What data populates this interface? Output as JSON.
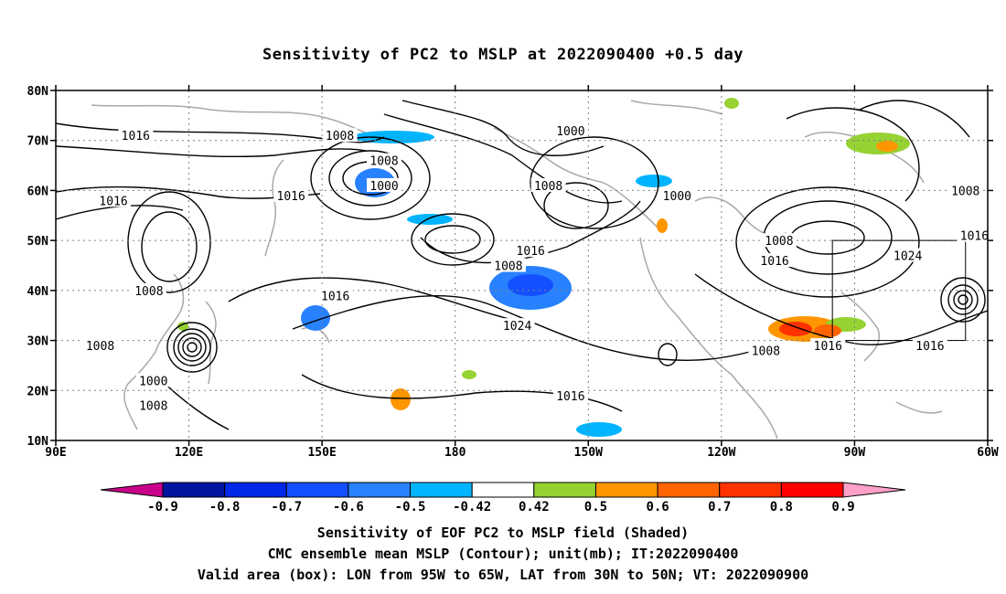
{
  "title": "Sensitivity of PC2 to MSLP at 2022090400 +0.5 day",
  "map": {
    "lon_range": [
      90,
      300
    ],
    "lat_range": [
      10,
      80
    ],
    "lat_ticks": [
      {
        "value": 80,
        "label": "80N"
      },
      {
        "value": 70,
        "label": "70N"
      },
      {
        "value": 60,
        "label": "60N"
      },
      {
        "value": 50,
        "label": "50N"
      },
      {
        "value": 40,
        "label": "40N"
      },
      {
        "value": 30,
        "label": "30N"
      },
      {
        "value": 20,
        "label": "20N"
      },
      {
        "value": 10,
        "label": "10N"
      }
    ],
    "lon_ticks": [
      {
        "value": 90,
        "label": "90E"
      },
      {
        "value": 120,
        "label": "120E"
      },
      {
        "value": 150,
        "label": "150E"
      },
      {
        "value": 180,
        "label": "180"
      },
      {
        "value": 210,
        "label": "150W"
      },
      {
        "value": 240,
        "label": "120W"
      },
      {
        "value": 270,
        "label": "90W"
      },
      {
        "value": 300,
        "label": "60W"
      }
    ],
    "valid_box": {
      "lon": [
        265,
        295
      ],
      "lat": [
        30,
        50
      ]
    },
    "contour_labels": [
      {
        "text": "1016",
        "lon": 108,
        "lat": 71
      },
      {
        "text": "1008",
        "lon": 154,
        "lat": 71
      },
      {
        "text": "1000",
        "lon": 206,
        "lat": 72
      },
      {
        "text": "1008",
        "lon": 164,
        "lat": 66
      },
      {
        "text": "1000",
        "lon": 164,
        "lat": 61
      },
      {
        "text": "1016",
        "lon": 143,
        "lat": 59
      },
      {
        "text": "1016",
        "lon": 103,
        "lat": 58
      },
      {
        "text": "1008",
        "lon": 201,
        "lat": 61
      },
      {
        "text": "1000",
        "lon": 230,
        "lat": 59
      },
      {
        "text": "1008",
        "lon": 253,
        "lat": 50
      },
      {
        "text": "1016",
        "lon": 252,
        "lat": 46
      },
      {
        "text": "1016",
        "lon": 197,
        "lat": 48
      },
      {
        "text": "1008",
        "lon": 192,
        "lat": 45
      },
      {
        "text": "1024",
        "lon": 282,
        "lat": 47
      },
      {
        "text": "1008",
        "lon": 111,
        "lat": 40
      },
      {
        "text": "1016",
        "lon": 153,
        "lat": 39
      },
      {
        "text": "1024",
        "lon": 194,
        "lat": 33
      },
      {
        "text": "1016",
        "lon": 297,
        "lat": 51
      },
      {
        "text": "1008",
        "lon": 295,
        "lat": 60
      },
      {
        "text": "1016",
        "lon": 264,
        "lat": 29
      },
      {
        "text": "1016",
        "lon": 287,
        "lat": 29
      },
      {
        "text": "1008",
        "lon": 250,
        "lat": 28
      },
      {
        "text": "1008",
        "lon": 100,
        "lat": 29
      },
      {
        "text": "1000",
        "lon": 112,
        "lat": 22
      },
      {
        "text": "1008",
        "lon": 112,
        "lat": 17
      },
      {
        "text": "1016",
        "lon": 206,
        "lat": 19
      }
    ]
  },
  "legend": {
    "colors": [
      "#c8008a",
      "#0014a0",
      "#0028e6",
      "#1450ff",
      "#2882ff",
      "#00b4ff",
      "#ffffff",
      "#96d232",
      "#ff9600",
      "#ff6400",
      "#ff3200",
      "#ff0000",
      "#ffa0c8"
    ],
    "labels": [
      "-0.9",
      "-0.8",
      "-0.7",
      "-0.6",
      "-0.5",
      "-0.42",
      "0.42",
      "0.5",
      "0.6",
      "0.7",
      "0.8",
      "0.9"
    ]
  },
  "captions": {
    "line1": "Sensitivity of EOF PC2 to MSLP field (Shaded)",
    "line2": "CMC ensemble mean MSLP (Contour); unit(mb); IT:2022090400",
    "line3": "Valid area (box): LON from 95W to 65W, LAT from 30N to 50N; VT: 2022090900"
  }
}
